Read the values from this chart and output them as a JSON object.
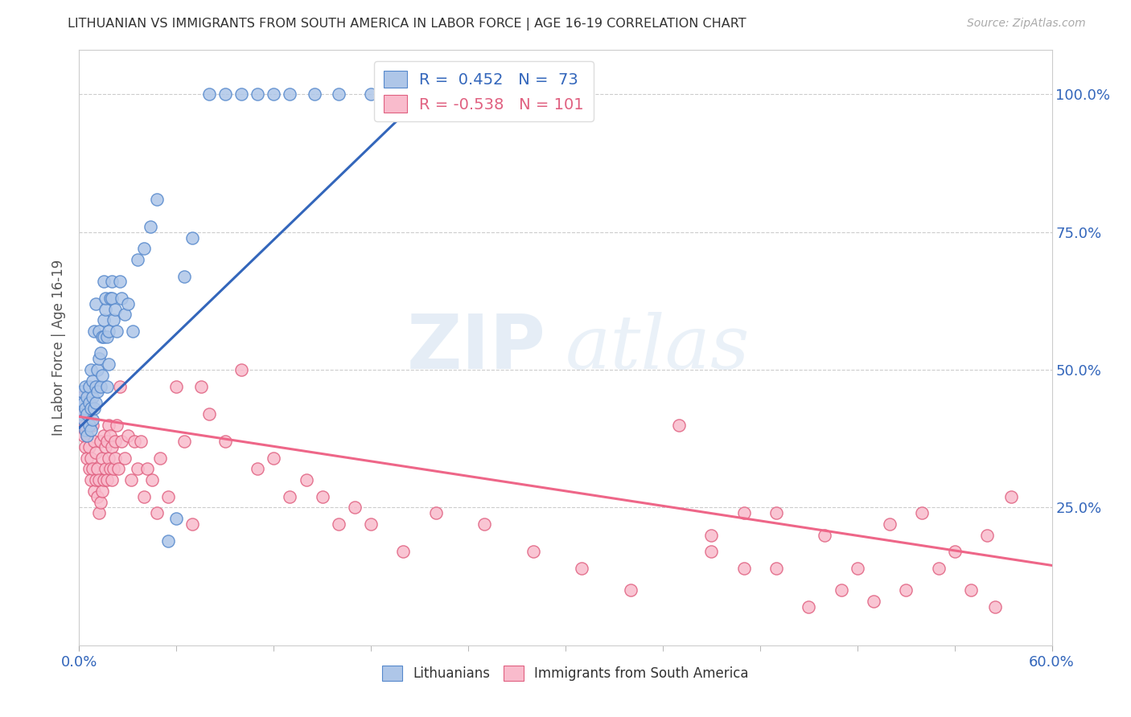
{
  "title": "LITHUANIAN VS IMMIGRANTS FROM SOUTH AMERICA IN LABOR FORCE | AGE 16-19 CORRELATION CHART",
  "source": "Source: ZipAtlas.com",
  "ylabel": "In Labor Force | Age 16-19",
  "ylabel_ticks": [
    "25.0%",
    "50.0%",
    "75.0%",
    "100.0%"
  ],
  "ylabel_tick_vals": [
    0.25,
    0.5,
    0.75,
    1.0
  ],
  "xmin": 0.0,
  "xmax": 0.6,
  "ymin": 0.0,
  "ymax": 1.08,
  "blue_R": 0.452,
  "blue_N": 73,
  "pink_R": -0.538,
  "pink_N": 101,
  "blue_color": "#AEC6E8",
  "pink_color": "#F9BBCC",
  "blue_edge_color": "#5588CC",
  "pink_edge_color": "#E06080",
  "blue_line_color": "#3366BB",
  "pink_line_color": "#EE6688",
  "watermark_zip": "ZIP",
  "watermark_atlas": "atlas",
  "legend_label_blue": "Lithuanians",
  "legend_label_pink": "Immigrants from South America",
  "blue_scatter_x": [
    0.001,
    0.002,
    0.002,
    0.003,
    0.003,
    0.004,
    0.004,
    0.004,
    0.005,
    0.005,
    0.005,
    0.006,
    0.006,
    0.006,
    0.007,
    0.007,
    0.007,
    0.008,
    0.008,
    0.008,
    0.009,
    0.009,
    0.01,
    0.01,
    0.01,
    0.011,
    0.011,
    0.012,
    0.012,
    0.013,
    0.013,
    0.014,
    0.014,
    0.015,
    0.015,
    0.015,
    0.016,
    0.016,
    0.017,
    0.017,
    0.018,
    0.018,
    0.019,
    0.02,
    0.02,
    0.021,
    0.022,
    0.023,
    0.025,
    0.026,
    0.028,
    0.03,
    0.033,
    0.036,
    0.04,
    0.044,
    0.048,
    0.055,
    0.06,
    0.065,
    0.07,
    0.08,
    0.09,
    0.1,
    0.11,
    0.12,
    0.13,
    0.145,
    0.16,
    0.18,
    0.2,
    0.21,
    0.22
  ],
  "blue_scatter_y": [
    0.44,
    0.42,
    0.46,
    0.41,
    0.44,
    0.39,
    0.43,
    0.47,
    0.38,
    0.42,
    0.45,
    0.4,
    0.44,
    0.47,
    0.39,
    0.43,
    0.5,
    0.41,
    0.45,
    0.48,
    0.43,
    0.57,
    0.44,
    0.47,
    0.62,
    0.46,
    0.5,
    0.52,
    0.57,
    0.47,
    0.53,
    0.49,
    0.56,
    0.59,
    0.66,
    0.56,
    0.61,
    0.63,
    0.47,
    0.56,
    0.51,
    0.57,
    0.63,
    0.66,
    0.63,
    0.59,
    0.61,
    0.57,
    0.66,
    0.63,
    0.6,
    0.62,
    0.57,
    0.7,
    0.72,
    0.76,
    0.81,
    0.19,
    0.23,
    0.67,
    0.74,
    1.0,
    1.0,
    1.0,
    1.0,
    1.0,
    1.0,
    1.0,
    1.0,
    1.0,
    1.0,
    1.0,
    1.0
  ],
  "pink_scatter_x": [
    0.001,
    0.002,
    0.002,
    0.003,
    0.003,
    0.004,
    0.004,
    0.005,
    0.005,
    0.005,
    0.006,
    0.006,
    0.007,
    0.007,
    0.008,
    0.008,
    0.009,
    0.009,
    0.01,
    0.01,
    0.011,
    0.011,
    0.012,
    0.012,
    0.013,
    0.013,
    0.014,
    0.014,
    0.015,
    0.015,
    0.016,
    0.016,
    0.017,
    0.017,
    0.018,
    0.018,
    0.019,
    0.019,
    0.02,
    0.02,
    0.021,
    0.022,
    0.022,
    0.023,
    0.024,
    0.025,
    0.026,
    0.028,
    0.03,
    0.032,
    0.034,
    0.036,
    0.038,
    0.04,
    0.042,
    0.045,
    0.048,
    0.05,
    0.055,
    0.06,
    0.065,
    0.07,
    0.075,
    0.08,
    0.09,
    0.1,
    0.11,
    0.12,
    0.13,
    0.14,
    0.15,
    0.16,
    0.17,
    0.18,
    0.2,
    0.22,
    0.25,
    0.28,
    0.31,
    0.34,
    0.37,
    0.39,
    0.41,
    0.43,
    0.46,
    0.48,
    0.5,
    0.52,
    0.54,
    0.56,
    0.575,
    0.39,
    0.41,
    0.43,
    0.45,
    0.47,
    0.49,
    0.51,
    0.53,
    0.55,
    0.565
  ],
  "pink_scatter_y": [
    0.44,
    0.4,
    0.45,
    0.38,
    0.42,
    0.36,
    0.4,
    0.34,
    0.38,
    0.42,
    0.32,
    0.36,
    0.3,
    0.34,
    0.4,
    0.32,
    0.28,
    0.37,
    0.3,
    0.35,
    0.27,
    0.32,
    0.24,
    0.3,
    0.26,
    0.37,
    0.28,
    0.34,
    0.3,
    0.38,
    0.32,
    0.36,
    0.3,
    0.37,
    0.34,
    0.4,
    0.32,
    0.38,
    0.3,
    0.36,
    0.32,
    0.37,
    0.34,
    0.4,
    0.32,
    0.47,
    0.37,
    0.34,
    0.38,
    0.3,
    0.37,
    0.32,
    0.37,
    0.27,
    0.32,
    0.3,
    0.24,
    0.34,
    0.27,
    0.47,
    0.37,
    0.22,
    0.47,
    0.42,
    0.37,
    0.5,
    0.32,
    0.34,
    0.27,
    0.3,
    0.27,
    0.22,
    0.25,
    0.22,
    0.17,
    0.24,
    0.22,
    0.17,
    0.14,
    0.1,
    0.4,
    0.17,
    0.14,
    0.24,
    0.2,
    0.14,
    0.22,
    0.24,
    0.17,
    0.2,
    0.27,
    0.2,
    0.24,
    0.14,
    0.07,
    0.1,
    0.08,
    0.1,
    0.14,
    0.1,
    0.07
  ],
  "blue_trend_x": [
    0.0,
    0.22
  ],
  "blue_trend_y": [
    0.395,
    1.02
  ],
  "pink_trend_x": [
    0.0,
    0.6
  ],
  "pink_trend_y": [
    0.415,
    0.145
  ]
}
